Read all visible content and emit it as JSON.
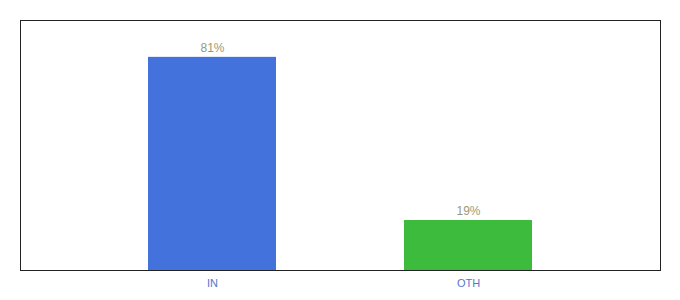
{
  "chart_data": {
    "type": "bar",
    "categories": [
      "IN",
      "OTH"
    ],
    "values": [
      81,
      19
    ],
    "value_labels": [
      "81%",
      "19%"
    ],
    "colors": [
      "#4472dd",
      "#3dbb3d"
    ],
    "ylim": [
      0,
      95
    ],
    "data_labels": true,
    "tick_labels": "x"
  }
}
